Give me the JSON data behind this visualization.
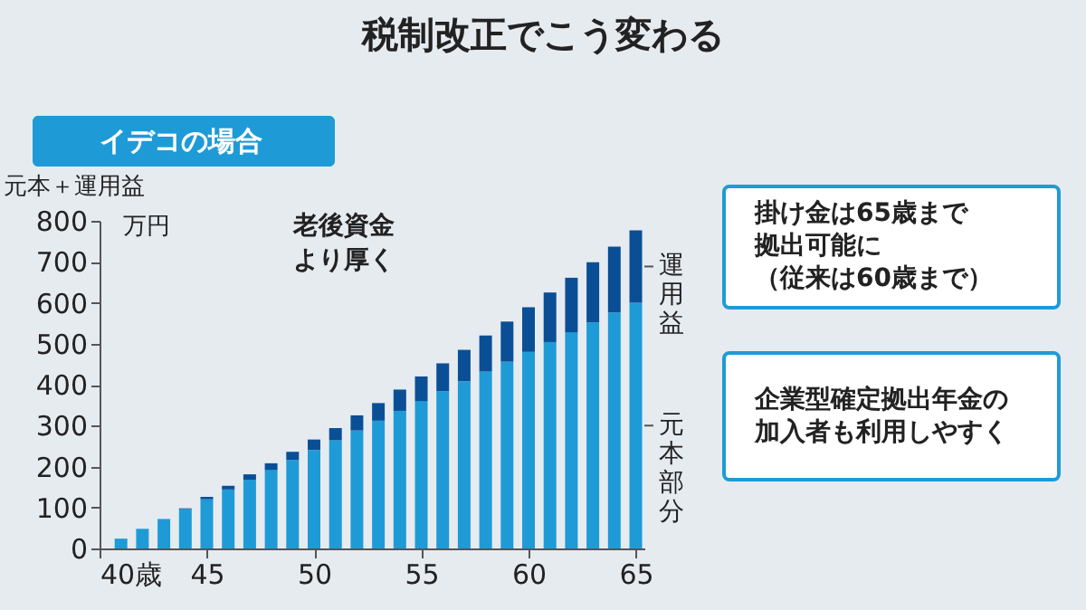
{
  "chart_data": {
    "type": "bar",
    "title": "税制改正でこう変わる",
    "subtitle": "イデコの場合",
    "ylabel": "元本＋運用益",
    "x": [
      41,
      42,
      43,
      44,
      45,
      46,
      47,
      48,
      49,
      50,
      51,
      52,
      53,
      54,
      55,
      56,
      57,
      58,
      59,
      60,
      61,
      62,
      63,
      64,
      65
    ],
    "series": [
      {
        "name": "元本部分",
        "color": "#1e9bd7",
        "values": [
          24,
          48,
          72,
          96,
          120,
          144,
          168,
          192,
          216,
          240,
          264,
          288,
          312,
          336,
          360,
          384,
          408,
          432,
          456,
          480,
          504,
          528,
          552,
          576,
          600
        ]
      },
      {
        "name": "運用益",
        "color": "#0a4f96",
        "values": [
          0,
          0,
          0,
          2,
          6,
          9,
          13,
          16,
          20,
          26,
          30,
          37,
          43,
          52,
          60,
          68,
          77,
          88,
          98,
          109,
          121,
          133,
          147,
          161,
          177
        ]
      }
    ],
    "stacked": true,
    "xlim": [
      40,
      65.4
    ],
    "xticks": [
      {
        "value": 40,
        "label": "40歳"
      },
      45,
      50,
      55,
      60,
      65
    ],
    "ylim": [
      0,
      800
    ],
    "yticks": [
      0,
      100,
      200,
      300,
      400,
      500,
      600,
      700,
      800
    ],
    "grid": false,
    "legend": false,
    "annotations": [
      "万円",
      "老後資金より厚く",
      "掛け金は65歳まで拠出可能に（従来は60歳まで）",
      "企業型確定拠出年金の加入者も利用しやすく"
    ]
  }
}
